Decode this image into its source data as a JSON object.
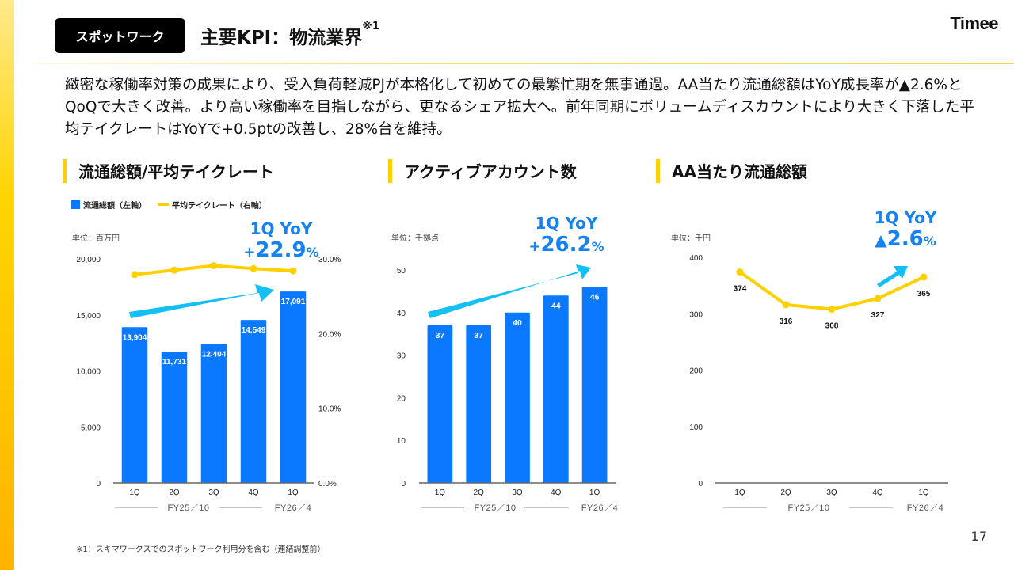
{
  "header": {
    "tag": "スポットワーク",
    "title": "主要KPI：物流業界",
    "title_sup": "※1",
    "logo": "Timee"
  },
  "summary": "緻密な稼働率対策の成果により、受入負荷軽減PJが本格化して初めての最繁忙期を無事通過。AA当たり流通総額はYoY成長率が▲2.6%とQoQで大きく改善。より高い稼働率を目指しながら、更なるシェア拡大へ。前年同期にボリュームディスカウントにより大きく下落した平均テイクレートはYoYで+0.5ptの改善し、28%台を維持。",
  "colors": {
    "bar": "#0a78ff",
    "line": "#ffd000",
    "arrow": "#12c0f5",
    "yoy_text": "#1482f0",
    "accent_yellow": "#ffd000"
  },
  "footnote": "※1：スキマワークスでのスポットワーク利用分を含む（連結調整前）",
  "page_number": "17",
  "chart_data": [
    {
      "type": "bar",
      "title": "流通総額/平均テイクレート",
      "unit": "単位：百万円",
      "legend": [
        {
          "name": "流通総額（左軸）",
          "marker": "square"
        },
        {
          "name": "平均テイクレート（右軸）",
          "marker": "line"
        }
      ],
      "legend_position": "top-left",
      "categories": [
        "1Q",
        "2Q",
        "3Q",
        "4Q",
        "1Q"
      ],
      "groups": [
        {
          "label": "FY25／10",
          "span": [
            0,
            3
          ]
        },
        {
          "label": "FY26／4",
          "span": [
            4,
            4
          ]
        }
      ],
      "series": [
        {
          "name": "流通総額",
          "type": "bar",
          "axis": "left",
          "values": [
            13904,
            11731,
            12404,
            14549,
            17091
          ],
          "labels": [
            "13,904",
            "11,731",
            "12,404",
            "14,549",
            "17,091"
          ]
        },
        {
          "name": "平均テイクレート",
          "type": "line",
          "axis": "right",
          "values": [
            27.9,
            28.5,
            29.1,
            28.7,
            28.4
          ]
        }
      ],
      "ylim": [
        0,
        20000
      ],
      "yticks": [
        "0",
        "5,000",
        "10,000",
        "15,000",
        "20,000"
      ],
      "y2lim": [
        0,
        30
      ],
      "y2ticks": [
        "0.0%",
        "10.0%",
        "20.0%",
        "30.0%"
      ],
      "annotation": {
        "line1": "1Q YoY",
        "prefix": "+",
        "value": "22.9",
        "suffix": "%"
      },
      "grid": false
    },
    {
      "type": "bar",
      "title": "アクティブアカウント数",
      "unit": "単位：千拠点",
      "categories": [
        "1Q",
        "2Q",
        "3Q",
        "4Q",
        "1Q"
      ],
      "groups": [
        {
          "label": "FY25／10",
          "span": [
            0,
            3
          ]
        },
        {
          "label": "FY26／4",
          "span": [
            4,
            4
          ]
        }
      ],
      "series": [
        {
          "name": "アクティブアカウント数",
          "type": "bar",
          "values": [
            37,
            37,
            40,
            44,
            46
          ],
          "labels": [
            "37",
            "37",
            "40",
            "44",
            "46"
          ]
        }
      ],
      "ylim": [
        0,
        50
      ],
      "yticks": [
        "0",
        "10",
        "20",
        "30",
        "40",
        "50"
      ],
      "annotation": {
        "line1": "1Q YoY",
        "prefix": "+",
        "value": "26.2",
        "suffix": "%"
      },
      "grid": false
    },
    {
      "type": "line",
      "title": "AA当たり流通総額",
      "unit": "単位：千円",
      "categories": [
        "1Q",
        "2Q",
        "3Q",
        "4Q",
        "1Q"
      ],
      "groups": [
        {
          "label": "FY25／10",
          "span": [
            0,
            3
          ]
        },
        {
          "label": "FY26／4",
          "span": [
            4,
            4
          ]
        }
      ],
      "series": [
        {
          "name": "AA当たり流通総額",
          "type": "line",
          "values": [
            374,
            316,
            308,
            327,
            365
          ],
          "labels": [
            "374",
            "316",
            "308",
            "327",
            "365"
          ]
        }
      ],
      "ylim": [
        0,
        400
      ],
      "yticks": [
        "0",
        "100",
        "200",
        "300",
        "400"
      ],
      "annotation": {
        "line1": "1Q YoY",
        "prefix": "▲",
        "value": "2.6",
        "suffix": "%"
      },
      "grid": false
    }
  ]
}
